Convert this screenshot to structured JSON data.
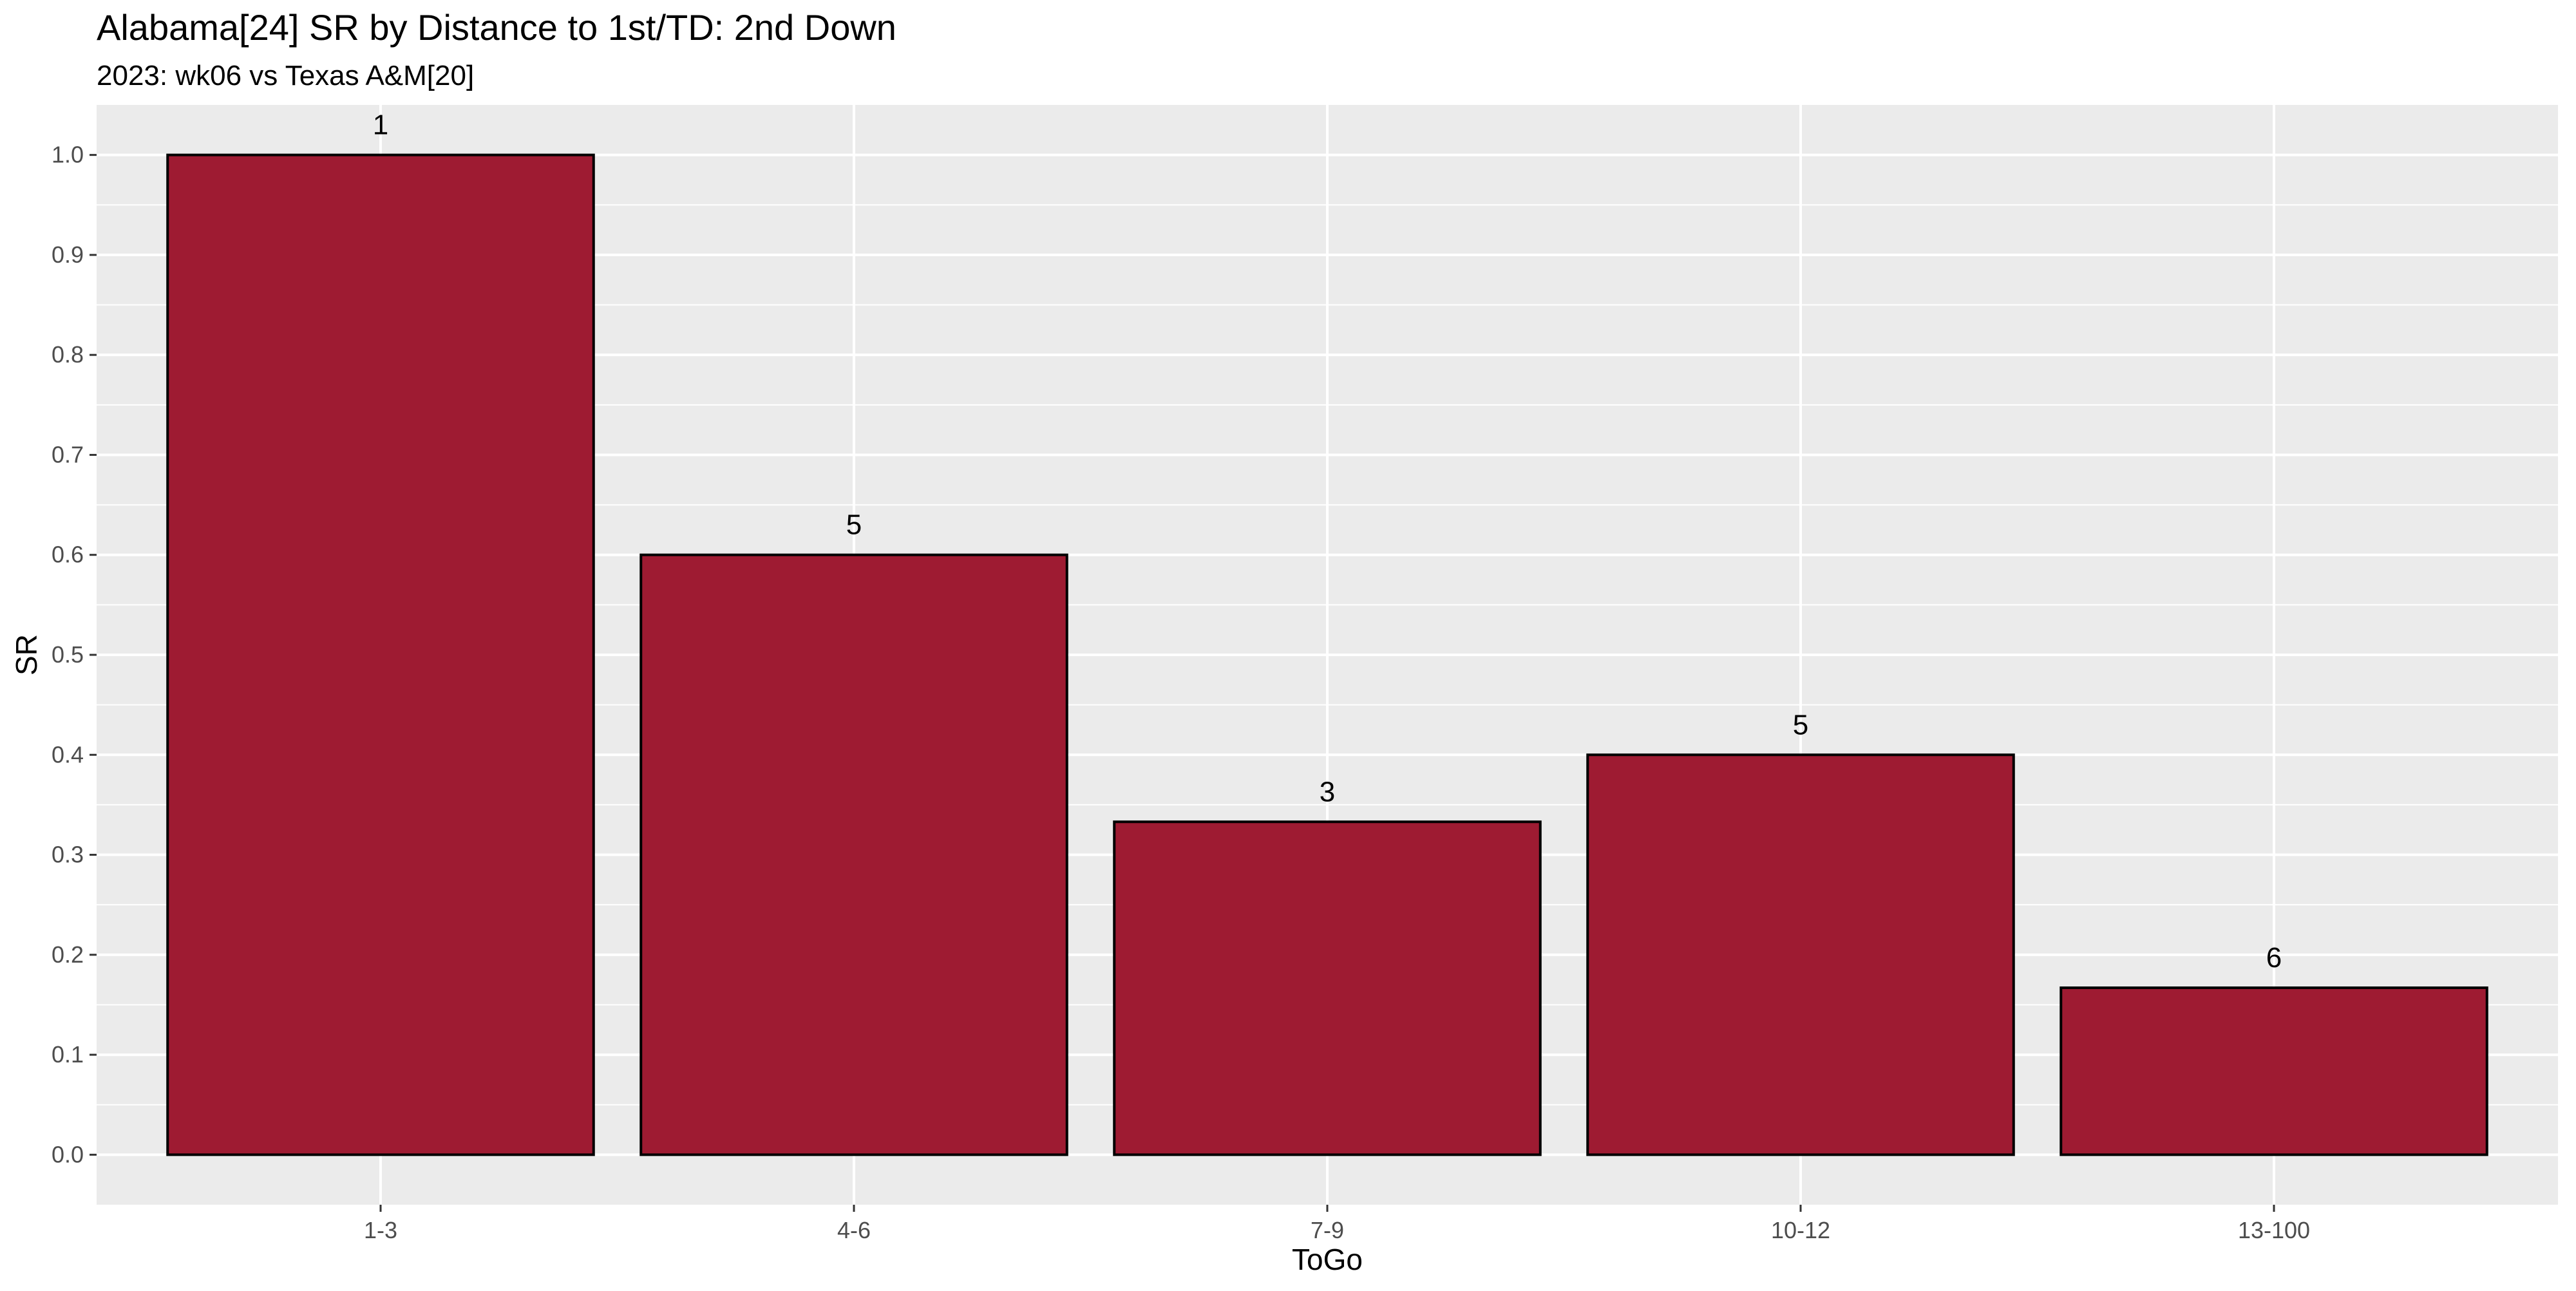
{
  "chart_data": {
    "type": "bar",
    "title": "Alabama[24] SR by Distance to 1st/TD: 2nd Down",
    "subtitle": "2023: wk06 vs Texas A&M[20]",
    "xlabel": "ToGo",
    "ylabel": "SR",
    "categories": [
      "1-3",
      "4-6",
      "7-9",
      "10-12",
      "13-100"
    ],
    "values": [
      1.0,
      0.6,
      0.333,
      0.4,
      0.167
    ],
    "data_labels": [
      "1",
      "5",
      "3",
      "5",
      "6"
    ],
    "ylim": [
      -0.05,
      1.05
    ],
    "yticks": [
      0.0,
      0.1,
      0.2,
      0.3,
      0.4,
      0.5,
      0.6,
      0.7,
      0.8,
      0.9,
      1.0
    ],
    "ytick_labels": [
      "0.0",
      "0.1",
      "0.2",
      "0.3",
      "0.4",
      "0.5",
      "0.6",
      "0.7",
      "0.8",
      "0.9",
      "1.0"
    ],
    "grid": true,
    "legend": "none",
    "colors": {
      "bar_fill": "#9e1b32",
      "bar_stroke": "#000000",
      "panel_bg": "#ebebeb",
      "grid": "#ffffff"
    }
  }
}
